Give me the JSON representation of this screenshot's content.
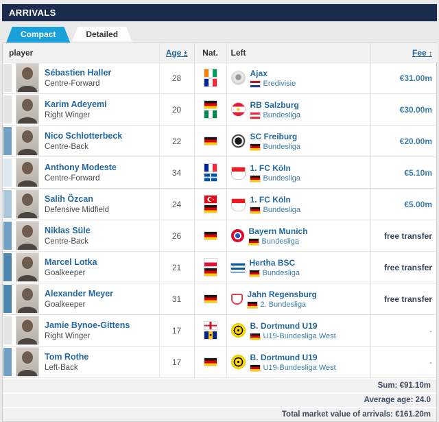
{
  "header": {
    "title": "ARRIVALS",
    "bar_color": "#1b2b4d"
  },
  "tabs": [
    {
      "label": "Compact",
      "active": true,
      "accent_color": "#1ba1da"
    },
    {
      "label": "Detailed",
      "active": false
    }
  ],
  "table": {
    "columns": {
      "player": "player",
      "age": "Age",
      "age_sort_icon": "±",
      "nat": "Nat.",
      "left": "Left",
      "fee": "Fee",
      "fee_sort_icon": "↕"
    },
    "rows": [
      {
        "mv_color": "#e5e5e5",
        "name": "Sébastien Haller",
        "position": "Centre-Forward",
        "age": "28",
        "flags": [
          "ivory-coast",
          "france"
        ],
        "club": "Ajax",
        "club_logo": "ajax",
        "league": "Eredivisie",
        "league_flag": "netherlands",
        "fee": "€31.00m",
        "fee_type": "value"
      },
      {
        "mv_color": "#e5e5e5",
        "name": "Karim Adeyemi",
        "position": "Right Winger",
        "age": "20",
        "flags": [
          "germany",
          "nigeria"
        ],
        "club": "RB Salzburg",
        "club_logo": "rb-salzburg",
        "league": "Bundesliga",
        "league_flag": "austria",
        "fee": "€30.00m",
        "fee_type": "value"
      },
      {
        "mv_color": "#70a1c4",
        "name": "Nico Schlotterbeck",
        "position": "Centre-Back",
        "age": "22",
        "flags": [
          "germany"
        ],
        "club": "SC Freiburg",
        "club_logo": "sc-freiburg",
        "league": "Bundesliga",
        "league_flag": "germany",
        "fee": "€20.00m",
        "fee_type": "value"
      },
      {
        "mv_color": "#dde9f2",
        "name": "Anthony Modeste",
        "position": "Centre-Forward",
        "age": "34",
        "flags": [
          "france",
          "martinique"
        ],
        "club": "1. FC Köln",
        "club_logo": "fc-koeln",
        "league": "Bundesliga",
        "league_flag": "germany",
        "fee": "€5.10m",
        "fee_type": "value"
      },
      {
        "mv_color": "#a9c6db",
        "name": "Salih Özcan",
        "position": "Defensive Midfield",
        "age": "24",
        "flags": [
          "turkey",
          "germany"
        ],
        "club": "1. FC Köln",
        "club_logo": "fc-koeln",
        "league": "Bundesliga",
        "league_flag": "germany",
        "fee": "€5.00m",
        "fee_type": "value"
      },
      {
        "mv_color": "#70a1c4",
        "name": "Niklas Süle",
        "position": "Centre-Back",
        "age": "26",
        "flags": [
          "germany"
        ],
        "club": "Bayern Munich",
        "club_logo": "bayern",
        "league": "Bundesliga",
        "league_flag": "germany",
        "fee": "free transfer",
        "fee_type": "free"
      },
      {
        "mv_color": "#4c87b1",
        "name": "Marcel Lotka",
        "position": "Goalkeeper",
        "age": "21",
        "flags": [
          "poland",
          "germany"
        ],
        "club": "Hertha BSC",
        "club_logo": "hertha",
        "league": "Bundesliga",
        "league_flag": "germany",
        "fee": "free transfer",
        "fee_type": "free"
      },
      {
        "mv_color": "#4c87b1",
        "name": "Alexander Meyer",
        "position": "Goalkeeper",
        "age": "31",
        "flags": [
          "germany"
        ],
        "club": "Jahn Regensburg",
        "club_logo": "jahn",
        "league": "2. Bundesliga",
        "league_flag": "germany",
        "fee": "free transfer",
        "fee_type": "free"
      },
      {
        "mv_color": "#e5e5e5",
        "name": "Jamie Bynoe-Gittens",
        "position": "Right Winger",
        "age": "17",
        "flags": [
          "england",
          "barbados"
        ],
        "club": "B. Dortmund U19",
        "club_logo": "bvb-u19",
        "league": "U19-Bundesliga West",
        "league_flag": "germany",
        "fee": "-",
        "fee_type": "dash"
      },
      {
        "mv_color": "#70a1c4",
        "name": "Tom Rothe",
        "position": "Left-Back",
        "age": "17",
        "flags": [
          "germany"
        ],
        "club": "B. Dortmund U19",
        "club_logo": "bvb-u19",
        "league": "U19-Bundesliga West",
        "league_flag": "germany",
        "fee": "-",
        "fee_type": "dash"
      }
    ],
    "footer": {
      "sum": "Sum: €91.10m",
      "average_age": "Average age: 24.0",
      "total_market_value": "Total market value of arrivals: €161.20m"
    }
  }
}
